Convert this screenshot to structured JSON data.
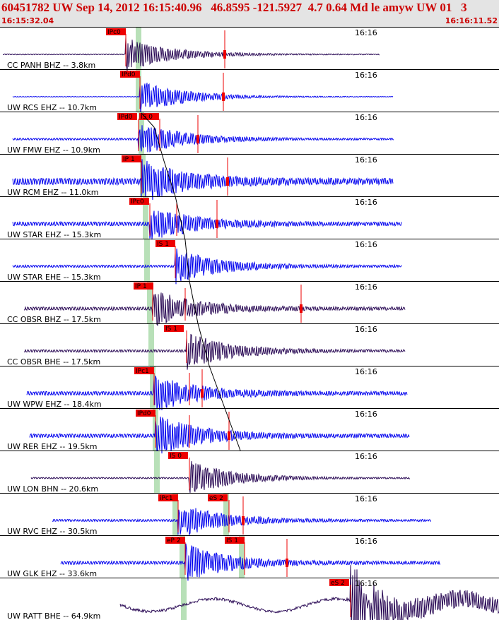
{
  "header": {
    "title": "60451782 UW Sep 14, 2012 16:15:40.96   46.8595 -121.5927  4.7 0.64 Md le amyw UW 01   3",
    "start_time": "16:15:32.04",
    "end_time": "16:16:11.52"
  },
  "colors": {
    "header_bg": "#e4e4e4",
    "header_text": "#cc0000",
    "trace_blue": "#0000ee",
    "trace_navy": "#2a0a55",
    "pick_red": "#ee0000",
    "pick_green": "#b8e0b8",
    "divider": "#000000"
  },
  "chart_data": {
    "type": "seismogram",
    "event": {
      "id": "60451782",
      "network": "UW",
      "origin_time": "Sep 14, 2012 16:15:40.96",
      "latitude": 46.8595,
      "longitude": -121.5927,
      "depth_km": 4.7,
      "magnitude": 0.64,
      "magnitude_type": "Md"
    },
    "time_range": [
      "16:15:32.04",
      "16:16:11.52"
    ],
    "time_tick_label": "16:16",
    "traces": [
      {
        "label": "CC PANH BHZ -- 3.8km",
        "color": "navy",
        "p_pick": "IPc0",
        "s_pick": ""
      },
      {
        "label": "UW RCS EHZ -- 10.7km",
        "color": "blue",
        "p_pick": "IPd0",
        "s_pick": ""
      },
      {
        "label": "UW FMW EHZ -- 10.9km",
        "color": "blue",
        "p_pick": "IPd0",
        "s_pick": "IS 0"
      },
      {
        "label": "UW RCM EHZ -- 11.0km",
        "color": "blue",
        "p_pick": "IP 1",
        "s_pick": ""
      },
      {
        "label": "UW STAR EHZ -- 15.3km",
        "color": "blue",
        "p_pick": "IPc0",
        "s_pick": ""
      },
      {
        "label": "UW STAR EHE -- 15.3km",
        "color": "blue",
        "p_pick": "",
        "s_pick": "IS 1"
      },
      {
        "label": "CC OBSR BHZ -- 17.5km",
        "color": "navy",
        "p_pick": "IP 1",
        "s_pick": ""
      },
      {
        "label": "CC OBSR BHE -- 17.5km",
        "color": "navy",
        "p_pick": "",
        "s_pick": "IS 1"
      },
      {
        "label": "UW WPW EHZ -- 18.4km",
        "color": "blue",
        "p_pick": "IPc1",
        "s_pick": ""
      },
      {
        "label": "UW RER EHZ -- 19.5km",
        "color": "blue",
        "p_pick": "IPd0",
        "s_pick": ""
      },
      {
        "label": "UW LON BHN -- 20.6km",
        "color": "navy",
        "p_pick": "",
        "s_pick": "IS 0"
      },
      {
        "label": "UW RVC EHZ -- 30.5km",
        "color": "blue",
        "p_pick": "iPc1",
        "s_pick": "eS 2"
      },
      {
        "label": "UW GLK EHZ -- 33.6km",
        "color": "blue",
        "p_pick": "eP 2",
        "s_pick": "IS 1"
      },
      {
        "label": "UW RATT BHE -- 64.9km",
        "color": "navy",
        "p_pick": "",
        "s_pick": "eS 2"
      }
    ]
  }
}
